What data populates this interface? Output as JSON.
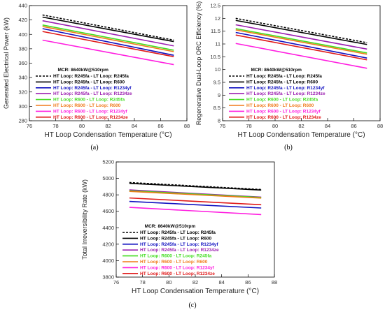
{
  "chart_data": [
    {
      "type": "line",
      "caption": "(a)",
      "xlabel": "HT Loop Condensation Temperature (°C)",
      "ylabel": "Generated Electrical Power (kW)",
      "annotation": "MCR: 8640kW@510rpm",
      "xlim": [
        76,
        88
      ],
      "xticks": [
        "76",
        "78",
        "80",
        "82",
        "84",
        "86",
        "88"
      ],
      "ylim": [
        280,
        440
      ],
      "yticks": [
        "280",
        "300",
        "320",
        "340",
        "360",
        "380",
        "400",
        "420",
        "440"
      ],
      "x": [
        77,
        87
      ],
      "series": [
        {
          "name": "HT Loop: R245fa - LT Loop: R245fa",
          "color": "#000000",
          "dash": true,
          "values": [
            427,
            392
          ]
        },
        {
          "name": "HT Loop: R245fa - LT Loop: R600",
          "color": "#000000",
          "dash": false,
          "values": [
            424,
            390
          ]
        },
        {
          "name": "HT Loop: R245fa - LT Loop: R1234yf",
          "color": "#1010c0",
          "dash": false,
          "values": [
            408,
            371
          ]
        },
        {
          "name": "HT Loop: R245fa - LT Loop: R1234ze",
          "color": "#9b1fb0",
          "dash": false,
          "values": [
            419,
            384
          ]
        },
        {
          "name": "HT Loop: R600 - LT Loop: R245fa",
          "color": "#44dd22",
          "dash": false,
          "values": [
            413,
            378
          ]
        },
        {
          "name": "HT Loop: R600 - LT Loop: R600",
          "color": "#f07a1a",
          "dash": false,
          "values": [
            411,
            376
          ]
        },
        {
          "name": "HT Loop: R600 - LT Loop: R1234yf",
          "color": "#ff1ee0",
          "dash": false,
          "values": [
            392,
            358
          ]
        },
        {
          "name": "HT Loop: R600 - LT Loop: R1234ze",
          "color": "#e01a1a",
          "dash": false,
          "values": [
            404,
            369
          ]
        }
      ]
    },
    {
      "type": "line",
      "caption": "(b)",
      "xlabel": "HT Loop Condensation Temperature (°C)",
      "ylabel": "Regenerative Dual-Loop ORC Efficiency (%)",
      "annotation": "MCR: 8640kW@510rpm",
      "xlim": [
        76,
        88
      ],
      "xticks": [
        "76",
        "78",
        "80",
        "82",
        "84",
        "86",
        "88"
      ],
      "ylim": [
        8,
        12.5
      ],
      "yticks": [
        "8",
        "8.5",
        "9",
        "9.5",
        "10",
        "10.5",
        "11",
        "11.5",
        "12",
        "12.5"
      ],
      "x": [
        77,
        87
      ],
      "series": [
        {
          "name": "HT Loop: R245fa - LT Loop: R245fa",
          "color": "#000000",
          "dash": true,
          "values": [
            12.0,
            11.05
          ]
        },
        {
          "name": "HT Loop: R245fa - LT Loop: R600",
          "color": "#000000",
          "dash": false,
          "values": [
            11.92,
            10.98
          ]
        },
        {
          "name": "HT Loop: R245fa - LT Loop: R1234yf",
          "color": "#1010c0",
          "dash": false,
          "values": [
            11.45,
            10.45
          ]
        },
        {
          "name": "HT Loop: R245fa - LT Loop: R1234ze",
          "color": "#9b1fb0",
          "dash": false,
          "values": [
            11.75,
            10.8
          ]
        },
        {
          "name": "HT Loop: R600 - LT Loop: R245fa",
          "color": "#44dd22",
          "dash": false,
          "values": [
            11.6,
            10.65
          ]
        },
        {
          "name": "HT Loop: R600 - LT Loop: R600",
          "color": "#f07a1a",
          "dash": false,
          "values": [
            11.55,
            10.6
          ]
        },
        {
          "name": "HT Loop: R600 - LT Loop: R1234yf",
          "color": "#ff1ee0",
          "dash": false,
          "values": [
            11.02,
            10.05
          ]
        },
        {
          "name": "HT Loop: R600 - LT Loop: R1234ze",
          "color": "#e01a1a",
          "dash": false,
          "values": [
            11.35,
            10.38
          ]
        }
      ]
    },
    {
      "type": "line",
      "caption": "(c)",
      "xlabel": "HT Loop Condensation Temperature (°C)",
      "ylabel": "Total Irreversibility Rate (kW)",
      "annotation": "MCR: 8640kW@510rpm",
      "xlim": [
        76,
        88
      ],
      "xticks": [
        "76",
        "78",
        "80",
        "82",
        "84",
        "86",
        "88"
      ],
      "ylim": [
        3800,
        5200
      ],
      "yticks": [
        "3800",
        "4000",
        "4200",
        "4400",
        "4600",
        "4800",
        "5000",
        "5200"
      ],
      "x": [
        77,
        87
      ],
      "series": [
        {
          "name": "HT Loop: R245fa - LT Loop: R245fa",
          "color": "#000000",
          "dash": true,
          "values": [
            4950,
            4865
          ]
        },
        {
          "name": "HT Loop: R245fa - LT Loop: R600",
          "color": "#000000",
          "dash": false,
          "values": [
            4940,
            4858
          ]
        },
        {
          "name": "HT Loop: R245fa - LT Loop: R1234yf",
          "color": "#1010c0",
          "dash": false,
          "values": [
            4720,
            4640
          ]
        },
        {
          "name": "HT Loop: R245fa - LT Loop: R1234ze",
          "color": "#9b1fb0",
          "dash": false,
          "values": [
            4860,
            4772
          ]
        },
        {
          "name": "HT Loop: R600 - LT Loop: R245fa",
          "color": "#44dd22",
          "dash": false,
          "values": [
            4850,
            4768
          ]
        },
        {
          "name": "HT Loop: R600 - LT Loop: R600",
          "color": "#f07a1a",
          "dash": false,
          "values": [
            4842,
            4760
          ]
        },
        {
          "name": "HT Loop: R600 - LT Loop: R1234yf",
          "color": "#ff1ee0",
          "dash": false,
          "values": [
            4648,
            4560
          ]
        },
        {
          "name": "HT Loop: R600 - LT Loop: R1234ze",
          "color": "#e01a1a",
          "dash": false,
          "values": [
            4762,
            4680
          ]
        }
      ]
    }
  ]
}
